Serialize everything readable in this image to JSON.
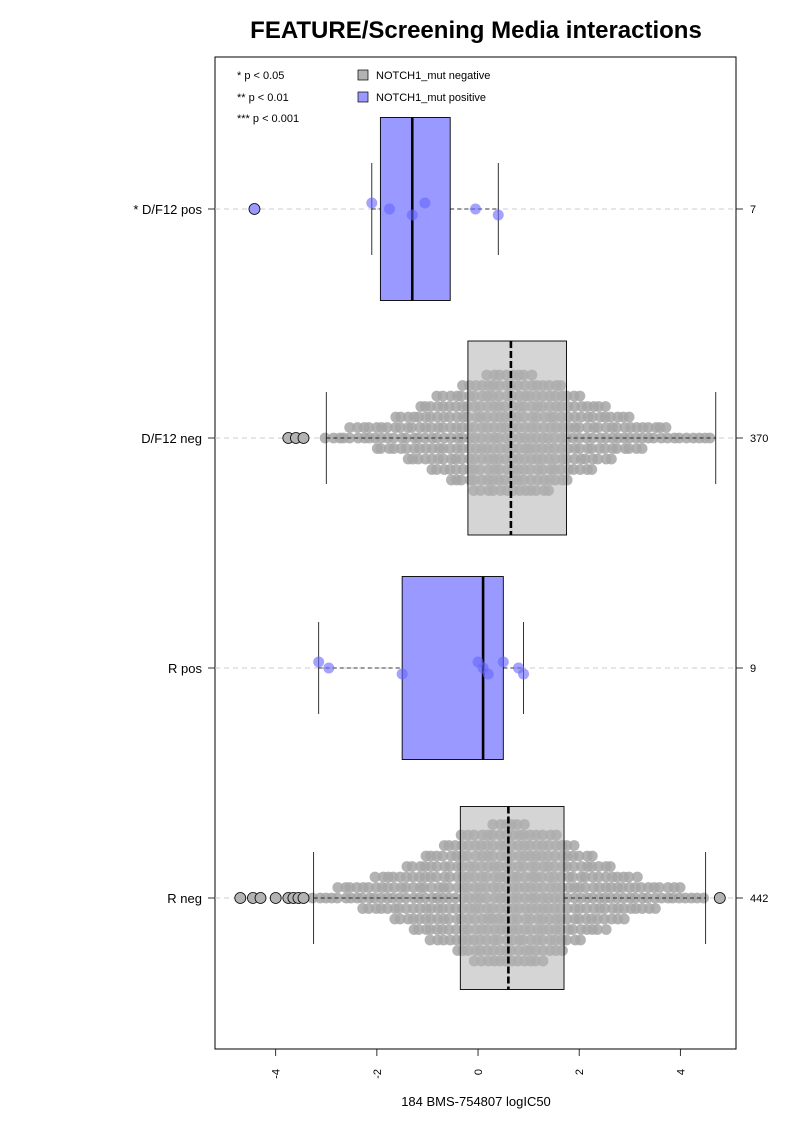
{
  "chart_data": {
    "type": "boxplot",
    "title": "FEATURE/Screening Media interactions",
    "xlabel": "184 BMS-754807 logIC50",
    "xlim": [
      -5.2,
      5.1
    ],
    "x_ticks": [
      -4,
      -2,
      0,
      2,
      4
    ],
    "x_tick_labels": [
      "-4",
      "-2",
      "0",
      "2",
      "4"
    ],
    "grid": "dashed horizontal line per group",
    "legend": {
      "position": "top-left",
      "significance": [
        "* p < 0.05",
        "** p < 0.01",
        "*** p < 0.001"
      ],
      "entries": [
        {
          "label": "NOTCH1_mut negative",
          "color": "#b3b3b3"
        },
        {
          "label": "NOTCH1_mut positive",
          "color": "#9999ff"
        }
      ]
    },
    "colors": {
      "negative_box": "#b3b3b3",
      "negative_points": "#a6a6a6",
      "positive_box": "#9999ff",
      "positive_points": "#6666ff"
    },
    "groups": [
      {
        "label": "* D/F12 pos",
        "count": "7",
        "mutation": "positive",
        "box": {
          "q1": -1.93,
          "median": -1.3,
          "q3": -0.55,
          "whisker_low": -2.1,
          "whisker_high": 0.4
        },
        "points": [
          -2.1,
          -1.75,
          -1.3,
          -1.05,
          -0.05,
          0.4
        ],
        "outliers": [
          -4.42
        ]
      },
      {
        "label": "D/F12 neg",
        "count": "370",
        "mutation": "negative",
        "box": {
          "q1": -0.2,
          "median": 0.65,
          "q3": 1.75,
          "whisker_low": -3.0,
          "whisker_high": 4.7
        },
        "points": [],
        "outliers": [
          -3.75,
          -3.6,
          -3.45
        ]
      },
      {
        "label": "R pos",
        "count": "9",
        "mutation": "positive",
        "box": {
          "q1": -1.5,
          "median": 0.1,
          "q3": 0.5,
          "whisker_low": -3.15,
          "whisker_high": 0.9
        },
        "points": [
          -3.15,
          -2.95,
          -1.5,
          0.0,
          0.1,
          0.2,
          0.5,
          0.8,
          0.9
        ],
        "outliers": []
      },
      {
        "label": "R neg",
        "count": "442",
        "mutation": "negative",
        "box": {
          "q1": -0.35,
          "median": 0.6,
          "q3": 1.7,
          "whisker_low": -3.25,
          "whisker_high": 4.5
        },
        "points": [],
        "outliers": [
          -4.7,
          -4.45,
          -4.3,
          -4.0,
          -3.75,
          -3.65,
          -3.55,
          -3.45,
          4.78
        ]
      }
    ]
  }
}
